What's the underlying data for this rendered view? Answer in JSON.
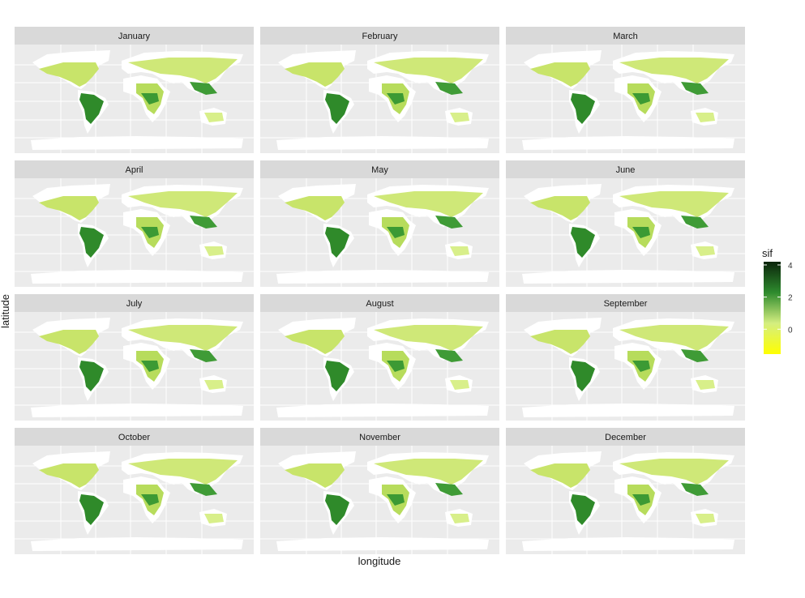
{
  "x_label": "longitude",
  "y_label": "latitude",
  "panels": [
    {
      "title": "January"
    },
    {
      "title": "February"
    },
    {
      "title": "March"
    },
    {
      "title": "April"
    },
    {
      "title": "May"
    },
    {
      "title": "June"
    },
    {
      "title": "July"
    },
    {
      "title": "August"
    },
    {
      "title": "September"
    },
    {
      "title": "October"
    },
    {
      "title": "November"
    },
    {
      "title": "December"
    }
  ],
  "legend": {
    "title": "sif",
    "ticks": [
      4,
      2,
      0
    ],
    "limits": [
      -1.55,
      4.2
    ],
    "colors": [
      "#ffff00",
      "#d4ee80",
      "#2e8b2e",
      "#0b240b"
    ]
  }
}
